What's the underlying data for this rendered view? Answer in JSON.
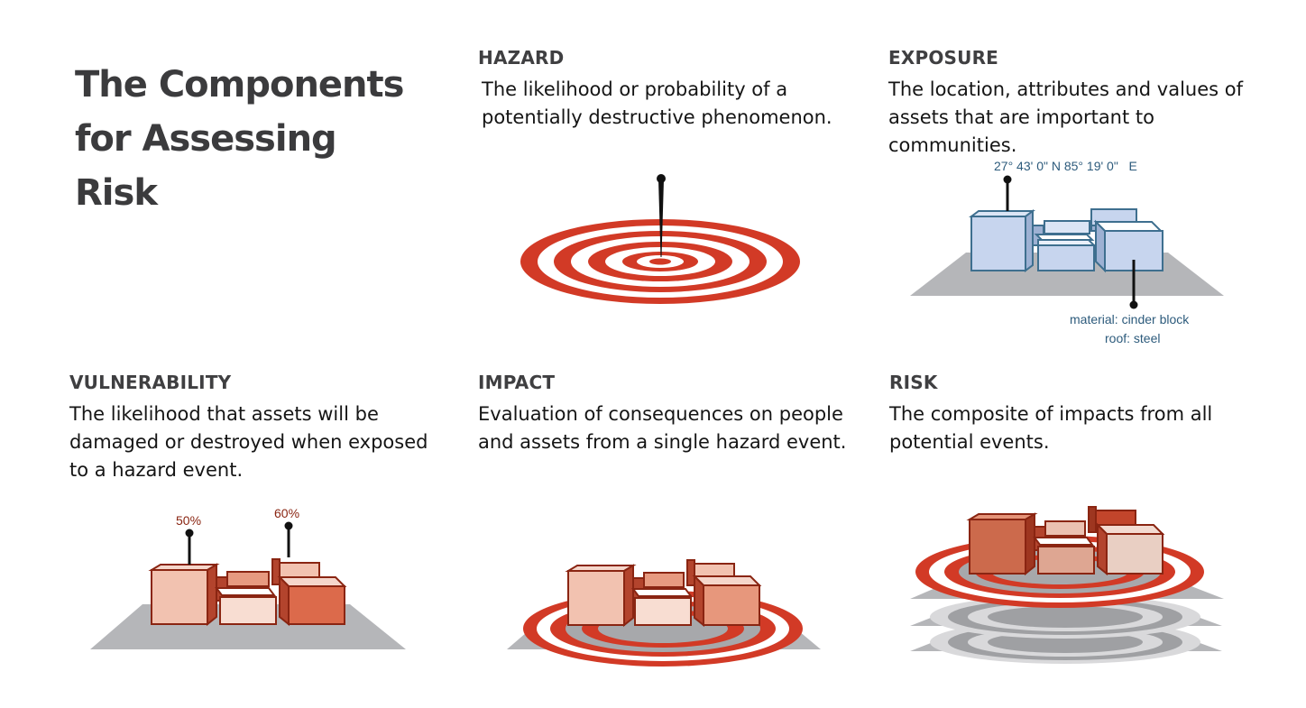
{
  "title": "The Components\nfor Assessing\nRisk",
  "panels": {
    "hazard": {
      "heading": "HAZARD",
      "text": "The likelihood or probability of a\npotentially destructive phenomenon."
    },
    "exposure": {
      "heading": "EXPOSURE",
      "text": "The location, attributes and values of\nassets that are important to communities."
    },
    "vulnerability": {
      "heading": "VULNERABILITY",
      "text": "The likelihood that assets will be\ndamaged or destroyed when exposed\nto a hazard event."
    },
    "impact": {
      "heading": "IMPACT",
      "text": "Evaluation of consequences on people\nand assets from a single hazard event."
    },
    "risk": {
      "heading": "RISK",
      "text": "The composite of impacts from all\npotential events."
    }
  },
  "annotations": {
    "coordinates": "27° 43' 0\" N 85° 19' 0\"   E",
    "material": "material: cinder block",
    "roof": "roof: steel",
    "vuln_a": "50%",
    "vuln_b": "60%"
  },
  "colors": {
    "target_red": "#d23a26",
    "ground_gray": "#b5b6b9",
    "exposure_blue": "#c7d5ee",
    "exposure_stroke": "#3e6f8f",
    "building_stroke": "#8a2512",
    "annotation_text_blue": "#2d5b7c",
    "annotation_text_red": "#8a2512"
  }
}
